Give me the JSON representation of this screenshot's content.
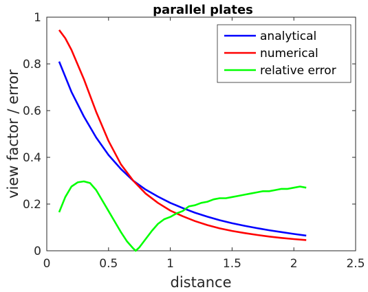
{
  "chart_data": {
    "type": "line",
    "title": "parallel plates",
    "xlabel": "distance",
    "ylabel": "view factor / error",
    "xlim": [
      0,
      2.5
    ],
    "ylim": [
      0,
      1
    ],
    "xticks": [
      0,
      0.5,
      1,
      1.5,
      2,
      2.5
    ],
    "xtick_labels": [
      "0",
      "0.5",
      "1",
      "1.5",
      "2",
      "2.5"
    ],
    "yticks": [
      0,
      0.2,
      0.4,
      0.6,
      0.8,
      1
    ],
    "ytick_labels": [
      "0",
      "0.2",
      "0.4",
      "0.6",
      "0.8",
      "1"
    ],
    "grid": false,
    "legend": "top-right",
    "series": [
      {
        "name": "analytical",
        "color": "#0000ff",
        "x": [
          0.1,
          0.2,
          0.3,
          0.4,
          0.5,
          0.6,
          0.7,
          0.8,
          0.9,
          1.0,
          1.1,
          1.2,
          1.3,
          1.4,
          1.5,
          1.6,
          1.7,
          1.8,
          1.9,
          2.0,
          2.1
        ],
        "y": [
          0.81,
          0.68,
          0.575,
          0.485,
          0.41,
          0.35,
          0.3,
          0.262,
          0.232,
          0.205,
          0.183,
          0.163,
          0.146,
          0.131,
          0.118,
          0.107,
          0.097,
          0.088,
          0.08,
          0.072,
          0.065
        ]
      },
      {
        "name": "numerical",
        "color": "#ff0000",
        "x": [
          0.1,
          0.15,
          0.2,
          0.3,
          0.4,
          0.5,
          0.6,
          0.7,
          0.8,
          0.9,
          1.0,
          1.1,
          1.2,
          1.3,
          1.4,
          1.5,
          1.6,
          1.7,
          1.8,
          1.9,
          2.0,
          2.1
        ],
        "y": [
          0.945,
          0.91,
          0.86,
          0.735,
          0.595,
          0.47,
          0.37,
          0.3,
          0.245,
          0.205,
          0.172,
          0.148,
          0.127,
          0.11,
          0.096,
          0.085,
          0.076,
          0.068,
          0.061,
          0.055,
          0.05,
          0.046
        ]
      },
      {
        "name": "relative error",
        "color": "#00ff00",
        "x": [
          0.1,
          0.15,
          0.2,
          0.25,
          0.3,
          0.35,
          0.4,
          0.45,
          0.5,
          0.55,
          0.6,
          0.65,
          0.7,
          0.72,
          0.75,
          0.8,
          0.85,
          0.9,
          0.95,
          1.0,
          1.05,
          1.1,
          1.15,
          1.2,
          1.25,
          1.3,
          1.35,
          1.4,
          1.45,
          1.5,
          1.55,
          1.6,
          1.65,
          1.7,
          1.75,
          1.8,
          1.85,
          1.9,
          1.95,
          2.0,
          2.05,
          2.1
        ],
        "y": [
          0.165,
          0.23,
          0.275,
          0.293,
          0.297,
          0.29,
          0.26,
          0.215,
          0.17,
          0.125,
          0.08,
          0.04,
          0.01,
          0.0,
          0.015,
          0.05,
          0.085,
          0.115,
          0.135,
          0.145,
          0.16,
          0.17,
          0.19,
          0.195,
          0.205,
          0.21,
          0.22,
          0.225,
          0.225,
          0.23,
          0.235,
          0.24,
          0.245,
          0.25,
          0.255,
          0.255,
          0.26,
          0.265,
          0.265,
          0.27,
          0.275,
          0.27
        ]
      }
    ]
  }
}
